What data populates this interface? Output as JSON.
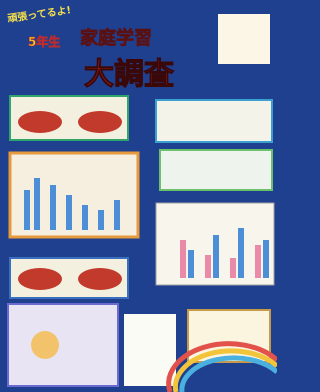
{
  "header": {
    "slogan": "頑張ってるよ!",
    "grade": "5年生",
    "title": "家庭学習",
    "subtitle": "大調査"
  }
}
